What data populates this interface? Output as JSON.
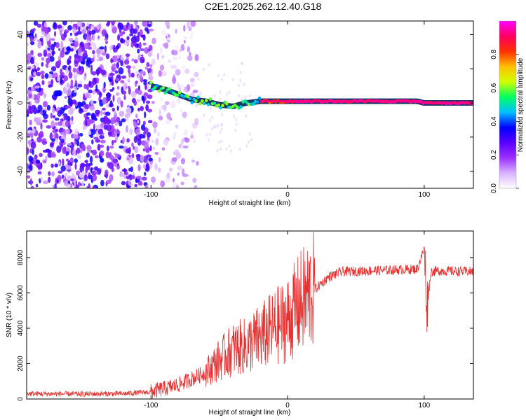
{
  "title": "C2E1.2025.262.12.40.G18",
  "chart_data": [
    {
      "type": "heatmap",
      "title": "C2E1.2025.262.12.40.G18",
      "xlabel": "Height of straight line (km)",
      "ylabel": "Frequency (Hz)",
      "xlim": [
        -191,
        136
      ],
      "ylim": [
        -50,
        48
      ],
      "xticks": [
        -100,
        0,
        100
      ],
      "yticks": [
        -40,
        -20,
        0,
        20,
        40
      ],
      "colorbar": {
        "label": "Normalized spectral amplitude",
        "range": [
          0,
          1
        ],
        "ticks": [
          "0.0",
          "0.2",
          "0.4",
          "0.6",
          "0.8"
        ],
        "colors": [
          "#ffffff",
          "#d9b3ff",
          "#9b30ff",
          "#5a00ff",
          "#0000ff",
          "#00c0ff",
          "#00ff60",
          "#d0ff00",
          "#ffc000",
          "#ff3000",
          "#ff0060",
          "#ff00ff"
        ]
      },
      "signal_trace": {
        "x": [
          -100,
          -90,
          -80,
          -70,
          -60,
          -50,
          -40,
          -30,
          -20,
          -10,
          0,
          20,
          50,
          95,
          100,
          136
        ],
        "frequency": [
          10,
          8,
          5,
          2,
          1,
          -1,
          -2,
          0,
          1,
          1,
          1,
          1,
          1,
          1,
          0,
          0
        ]
      }
    },
    {
      "type": "line",
      "xlabel": "Height of straight line (km)",
      "ylabel": "SNR (10 * v/v)",
      "xlim": [
        -191,
        136
      ],
      "ylim": [
        0,
        9500
      ],
      "xticks": [
        -100,
        0,
        100
      ],
      "yticks": [
        0,
        2000,
        4000,
        6000,
        8000
      ],
      "series": [
        {
          "name": "SNR",
          "color": "#e83030",
          "x": [
            -191,
            -150,
            -120,
            -100,
            -80,
            -60,
            -50,
            -40,
            -30,
            -20,
            -10,
            0,
            10,
            20,
            30,
            40,
            60,
            80,
            95,
            100,
            102,
            105,
            110,
            136
          ],
          "y": [
            300,
            280,
            300,
            400,
            800,
            1500,
            2200,
            2800,
            3000,
            3500,
            4000,
            4500,
            5500,
            6200,
            6900,
            7200,
            7250,
            7300,
            7350,
            8500,
            5200,
            7200,
            7250,
            7200
          ]
        }
      ]
    }
  ]
}
